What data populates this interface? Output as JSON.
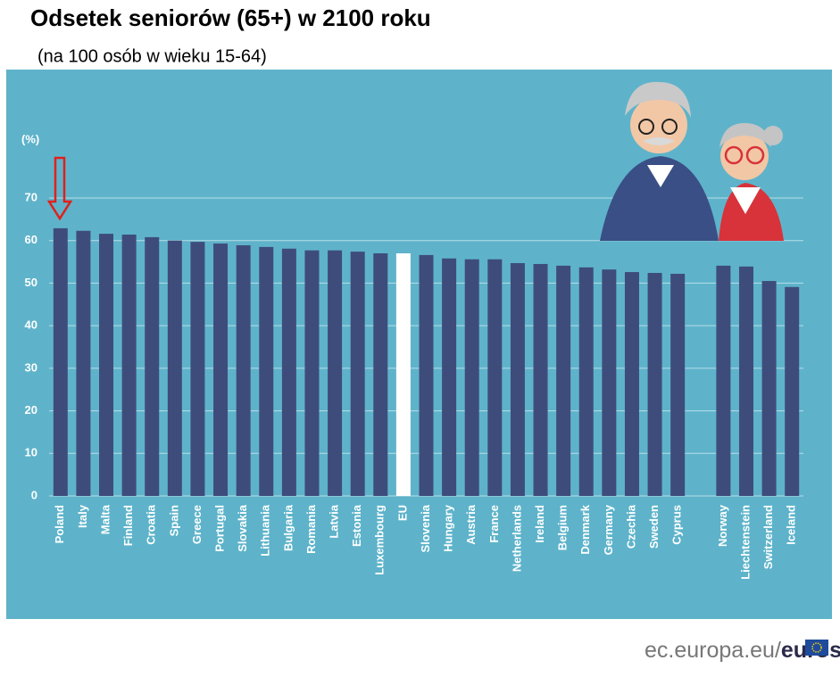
{
  "chart_data": {
    "type": "bar",
    "title": "Odsetek seniorów (65+) w 2100 roku",
    "subtitle": "(na 100 osób w wieku 15-64)",
    "y_label": "(%)",
    "categories": [
      "Poland",
      "Italy",
      "Malta",
      "Finland",
      "Croatia",
      "Spain",
      "Greece",
      "Portugal",
      "Slovakia",
      "Lithuania",
      "Bulgaria",
      "Romania",
      "Latvia",
      "Estonia",
      "Luxembourg",
      "EU",
      "Slovenia",
      "Hungary",
      "Austria",
      "France",
      "Netherlands",
      "Ireland",
      "Belgium",
      "Denmark",
      "Germany",
      "Czechia",
      "Sweden",
      "Cyprus",
      null,
      "Norway",
      "Liechtenstein",
      "Switzerland",
      "Iceland"
    ],
    "values": [
      62.9,
      62.3,
      61.6,
      61.4,
      60.8,
      60.0,
      59.7,
      59.3,
      58.9,
      58.5,
      58.1,
      57.7,
      57.7,
      57.4,
      57.0,
      57.0,
      56.6,
      55.8,
      55.6,
      55.6,
      54.7,
      54.5,
      54.1,
      53.7,
      53.2,
      52.6,
      52.4,
      52.2,
      null,
      54.1,
      53.9,
      50.5,
      49.1
    ],
    "colors": [
      "#3e4c7c",
      "#3e4c7c",
      "#3e4c7c",
      "#3e4c7c",
      "#3e4c7c",
      "#3e4c7c",
      "#3e4c7c",
      "#3e4c7c",
      "#3e4c7c",
      "#3e4c7c",
      "#3e4c7c",
      "#3e4c7c",
      "#3e4c7c",
      "#3e4c7c",
      "#3e4c7c",
      "#ffffff",
      "#3e4c7c",
      "#3e4c7c",
      "#3e4c7c",
      "#3e4c7c",
      "#3e4c7c",
      "#3e4c7c",
      "#3e4c7c",
      "#3e4c7c",
      "#3e4c7c",
      "#3e4c7c",
      "#3e4c7c",
      "#3e4c7c",
      null,
      "#3e4c7c",
      "#3e4c7c",
      "#3e4c7c",
      "#3e4c7c"
    ],
    "ylim": [
      0,
      70
    ],
    "yticks": [
      0,
      10,
      20,
      30,
      40,
      50,
      60,
      70
    ],
    "grid": true,
    "source": "ec.europa.eu/",
    "brand": "eurostat"
  }
}
